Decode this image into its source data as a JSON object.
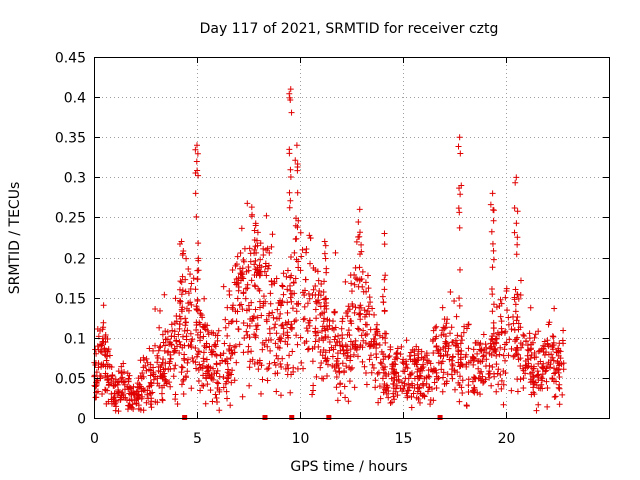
{
  "chart_data": {
    "type": "scatter",
    "title": "Day 117 of 2021, SRMTID for receiver cztg",
    "xlabel": "GPS time / hours",
    "ylabel": "SRMTID / TECUs",
    "xlim": [
      0,
      25
    ],
    "ylim": [
      0,
      0.45
    ],
    "x_ticks": [
      0,
      5,
      10,
      15,
      20
    ],
    "x_tick_labels": [
      "0",
      "5",
      "10",
      "15",
      "20"
    ],
    "y_ticks": [
      0,
      0.05,
      0.1,
      0.15,
      0.2,
      0.25,
      0.3,
      0.35,
      0.4,
      0.45
    ],
    "y_tick_labels": [
      "0",
      "0.05",
      "0.1",
      "0.15",
      "0.2",
      "0.25",
      "0.3",
      "0.35",
      "0.4",
      "0.45"
    ],
    "grid": true,
    "marker": "+",
    "marker_color": "#e00000",
    "gap_markers_x": [
      4.4,
      8.3,
      9.6,
      11.4,
      16.8
    ],
    "baseline_profile": {
      "hours": [
        0,
        0.5,
        1,
        1.5,
        2,
        2.5,
        3,
        3.5,
        4,
        4.5,
        5,
        5.5,
        6,
        6.5,
        7,
        7.5,
        8,
        8.5,
        9,
        9.5,
        10,
        10.5,
        11,
        11.5,
        12,
        12.5,
        13,
        13.5,
        14,
        14.5,
        15,
        15.5,
        16,
        16.5,
        17,
        17.5,
        18,
        18.5,
        19,
        19.5,
        20,
        20.5,
        21,
        21.5,
        22,
        22.5,
        22.8
      ],
      "typical_srmtid": [
        0.06,
        0.08,
        0.03,
        0.04,
        0.02,
        0.05,
        0.06,
        0.07,
        0.09,
        0.12,
        0.1,
        0.08,
        0.06,
        0.08,
        0.13,
        0.14,
        0.15,
        0.14,
        0.1,
        0.12,
        0.14,
        0.12,
        0.1,
        0.09,
        0.08,
        0.1,
        0.12,
        0.09,
        0.06,
        0.05,
        0.05,
        0.05,
        0.05,
        0.06,
        0.08,
        0.07,
        0.07,
        0.06,
        0.06,
        0.08,
        0.1,
        0.09,
        0.07,
        0.06,
        0.07,
        0.06,
        0.06
      ]
    },
    "peaks": [
      {
        "x": 4.25,
        "y": 0.22
      },
      {
        "x": 5.0,
        "y": 0.34
      },
      {
        "x": 7.85,
        "y": 0.24
      },
      {
        "x": 9.55,
        "y": 0.41
      },
      {
        "x": 9.85,
        "y": 0.34
      },
      {
        "x": 11.2,
        "y": 0.22
      },
      {
        "x": 12.9,
        "y": 0.26
      },
      {
        "x": 14.1,
        "y": 0.23
      },
      {
        "x": 17.75,
        "y": 0.35
      },
      {
        "x": 19.35,
        "y": 0.28
      },
      {
        "x": 20.5,
        "y": 0.3
      }
    ],
    "x_end": 22.8
  }
}
